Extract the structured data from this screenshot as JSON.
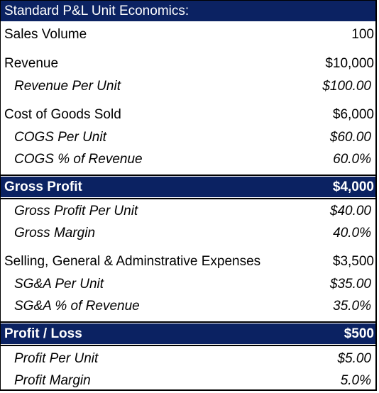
{
  "title": "Standard P&L Unit Economics:",
  "rows": {
    "sales_volume": {
      "label": "Sales Volume",
      "value": "100"
    },
    "revenue": {
      "label": "Revenue",
      "value": "$10,000"
    },
    "revenue_per_unit": {
      "label": "Revenue Per Unit",
      "value": "$100.00"
    },
    "cogs": {
      "label": "Cost of Goods Sold",
      "value": "$6,000"
    },
    "cogs_per_unit": {
      "label": "COGS Per Unit",
      "value": "$60.00"
    },
    "cogs_pct": {
      "label": "COGS % of Revenue",
      "value": "60.0%"
    },
    "gross_profit": {
      "label": "Gross Profit",
      "value": "$4,000"
    },
    "gross_profit_per_unit": {
      "label": "Gross Profit Per Unit",
      "value": "$40.00"
    },
    "gross_margin": {
      "label": "Gross Margin",
      "value": "40.0%"
    },
    "sga": {
      "label": "Selling, General & Adminstrative Expenses",
      "value": "$3,500"
    },
    "sga_per_unit": {
      "label": "SG&A Per Unit",
      "value": "$35.00"
    },
    "sga_pct": {
      "label": "SG&A % of Revenue",
      "value": "35.0%"
    },
    "profit_loss": {
      "label": "Profit / Loss",
      "value": "$500"
    },
    "profit_per_unit": {
      "label": "Profit Per Unit",
      "value": "$5.00"
    },
    "profit_margin": {
      "label": "Profit Margin",
      "value": "5.0%"
    }
  },
  "colors": {
    "header_band": "#0b2262",
    "header_text": "#ffffff"
  }
}
